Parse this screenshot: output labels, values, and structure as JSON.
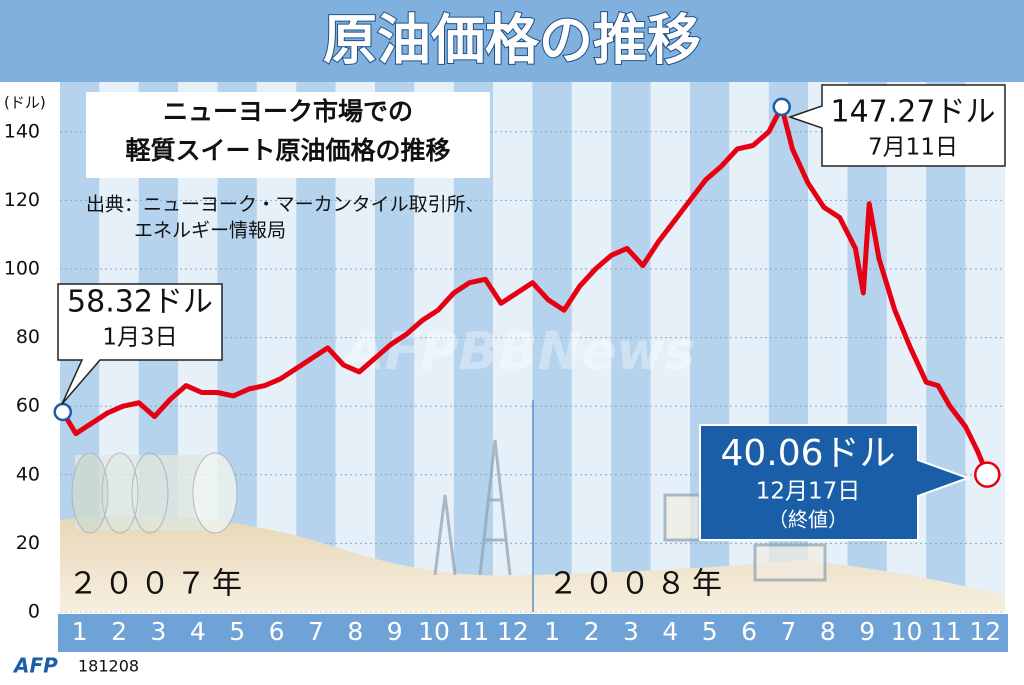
{
  "chart_data": {
    "type": "line",
    "title": "原油価格の推移",
    "subtitle": [
      "ニューヨーク市場での",
      "軽質スイート原油価格の推移"
    ],
    "source": [
      "出典：ニューヨーク・マーカンタイル取引所、",
      "エネルギー情報局"
    ],
    "y_label": "(ドル)",
    "years": [
      "２００７年",
      "２００８年"
    ],
    "month_labels": [
      "1",
      "2",
      "3",
      "4",
      "5",
      "6",
      "7",
      "8",
      "9",
      "10",
      "11",
      "12",
      "1",
      "2",
      "3",
      "4",
      "5",
      "6",
      "7",
      "8",
      "9",
      "10",
      "11",
      "12"
    ],
    "xlim": [
      0,
      24
    ],
    "x": [
      0.07,
      0.4,
      0.8,
      1.2,
      1.6,
      2.0,
      2.4,
      2.8,
      3.2,
      3.6,
      4.0,
      4.4,
      4.8,
      5.2,
      5.6,
      6.0,
      6.4,
      6.8,
      7.2,
      7.6,
      8.0,
      8.4,
      8.8,
      9.2,
      9.6,
      10.0,
      10.4,
      10.8,
      11.2,
      11.6,
      12.0,
      12.4,
      12.8,
      13.2,
      13.6,
      14.0,
      14.4,
      14.8,
      15.2,
      15.6,
      16.0,
      16.4,
      16.8,
      17.2,
      17.6,
      18.0,
      18.33,
      18.6,
      19.0,
      19.4,
      19.8,
      20.2,
      20.4,
      20.55,
      20.8,
      21.2,
      21.6,
      22.0,
      22.3,
      22.6,
      23.0,
      23.3,
      23.55
    ],
    "values": [
      58.32,
      52,
      55,
      58,
      60,
      61,
      57,
      62,
      66,
      64,
      64,
      63,
      65,
      66,
      68,
      71,
      74,
      77,
      72,
      70,
      74,
      78,
      81,
      85,
      88,
      93,
      96,
      97,
      90,
      93,
      96,
      91,
      88,
      95,
      100,
      104,
      106,
      101,
      108,
      114,
      120,
      126,
      130,
      135,
      136,
      140,
      147.27,
      135,
      125,
      118,
      115,
      106,
      93,
      119,
      103,
      88,
      77,
      67,
      66,
      60,
      54,
      47,
      40.06
    ],
    "color": "#e60012",
    "ylim": [
      0,
      150
    ],
    "yticks": [
      0,
      20,
      40,
      60,
      80,
      100,
      120,
      140
    ],
    "grid": true,
    "annotations": [
      {
        "text": "58.32ドル",
        "date": "1月3日"
      },
      {
        "text": "147.27ドル",
        "date": "7月11日"
      },
      {
        "text": "40.06ドル",
        "date": "12月17日",
        "note": "（終値）"
      }
    ],
    "watermark": "AFPBBNews",
    "credit": "AFP",
    "code": "181208"
  }
}
